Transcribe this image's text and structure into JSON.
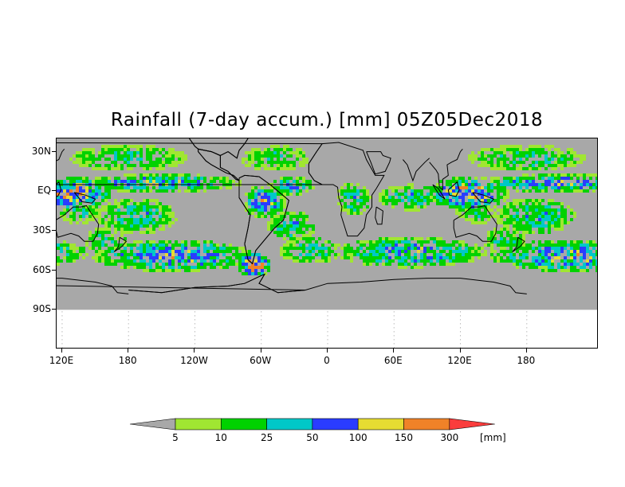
{
  "title": "Rainfall (7-day accum.) [mm] 05Z05Dec2018",
  "axes": {
    "lat_labels": [
      "30N",
      "EQ",
      "30S",
      "60S",
      "90S"
    ],
    "lat_values": [
      30,
      0,
      -30,
      -60,
      -90
    ],
    "lon_labels": [
      "120E",
      "180",
      "120W",
      "60W",
      "0",
      "60E",
      "120E",
      "180"
    ],
    "lon_values": [
      120,
      180,
      240,
      300,
      360,
      420,
      480,
      540
    ]
  },
  "map": {
    "lon_range": [
      115,
      605
    ],
    "lat_range": [
      -120,
      40
    ],
    "data_lat_bottom": -90,
    "no_data_color": "#a8a8a8"
  },
  "legend": {
    "thresholds": [
      "5",
      "10",
      "25",
      "50",
      "100",
      "150",
      "300"
    ],
    "unit": "[mm]",
    "colors": [
      "#a8a8a8",
      "#a0e632",
      "#00d200",
      "#00c8c8",
      "#2a3cff",
      "#e6dc32",
      "#f08228",
      "#fa3c3c"
    ]
  },
  "continents": [
    {
      "name": "south-america",
      "points": [
        [
          -80,
          10
        ],
        [
          -75,
          12
        ],
        [
          -62,
          11
        ],
        [
          -52,
          5
        ],
        [
          -35,
          -7
        ],
        [
          -40,
          -22
        ],
        [
          -48,
          -28
        ],
        [
          -58,
          -38
        ],
        [
          -65,
          -45
        ],
        [
          -68,
          -55
        ],
        [
          -72,
          -52
        ],
        [
          -75,
          -40
        ],
        [
          -72,
          -28
        ],
        [
          -70,
          -18
        ],
        [
          -80,
          -5
        ]
      ]
    },
    {
      "name": "central-america",
      "points": [
        [
          -117,
          32
        ],
        [
          -105,
          30
        ],
        [
          -97,
          27
        ],
        [
          -97,
          18
        ],
        [
          -90,
          15
        ],
        [
          -83,
          9
        ],
        [
          -80,
          8
        ],
        [
          -85,
          12
        ],
        [
          -92,
          14
        ],
        [
          -105,
          20
        ],
        [
          -110,
          23
        ],
        [
          -117,
          30
        ]
      ]
    },
    {
      "name": "north-america",
      "points": [
        [
          -125,
          40
        ],
        [
          -120,
          34
        ],
        [
          -117,
          32
        ],
        [
          -105,
          30
        ],
        [
          -97,
          27
        ],
        [
          -90,
          30
        ],
        [
          -82,
          25
        ],
        [
          -80,
          31
        ],
        [
          -75,
          36
        ],
        [
          -72,
          40
        ]
      ]
    },
    {
      "name": "africa",
      "points": [
        [
          -17,
          21
        ],
        [
          -17,
          14
        ],
        [
          -12,
          8
        ],
        [
          -5,
          5
        ],
        [
          5,
          5
        ],
        [
          9,
          3
        ],
        [
          10,
          -5
        ],
        [
          13,
          -12
        ],
        [
          12,
          -18
        ],
        [
          18,
          -34
        ],
        [
          27,
          -34
        ],
        [
          33,
          -28
        ],
        [
          35,
          -18
        ],
        [
          40,
          -12
        ],
        [
          40,
          -3
        ],
        [
          44,
          2
        ],
        [
          51,
          12
        ],
        [
          43,
          12
        ],
        [
          35,
          24
        ],
        [
          32,
          31
        ],
        [
          10,
          37
        ],
        [
          -5,
          36
        ],
        [
          -10,
          30
        ]
      ]
    },
    {
      "name": "madagascar",
      "points": [
        [
          44,
          -12
        ],
        [
          50,
          -15
        ],
        [
          49,
          -25
        ],
        [
          45,
          -25
        ],
        [
          43,
          -20
        ]
      ]
    },
    {
      "name": "arabia",
      "points": [
        [
          35,
          30
        ],
        [
          39,
          22
        ],
        [
          43,
          13
        ],
        [
          52,
          15
        ],
        [
          56,
          22
        ],
        [
          57,
          25
        ],
        [
          50,
          27
        ],
        [
          48,
          30
        ]
      ]
    },
    {
      "name": "india",
      "points": [
        [
          68,
          24
        ],
        [
          72,
          20
        ],
        [
          77,
          8
        ],
        [
          80,
          15
        ],
        [
          88,
          22
        ],
        [
          92,
          25
        ]
      ]
    },
    {
      "name": "southeast-asia",
      "points": [
        [
          92,
          22
        ],
        [
          98,
          16
        ],
        [
          100,
          13
        ],
        [
          101,
          3
        ],
        [
          104,
          1
        ],
        [
          104,
          9
        ],
        [
          109,
          12
        ],
        [
          108,
          20
        ],
        [
          112,
          22
        ],
        [
          117,
          24
        ],
        [
          120,
          30
        ],
        [
          122,
          32
        ]
      ]
    },
    {
      "name": "sumatra",
      "points": [
        [
          95,
          5
        ],
        [
          100,
          2
        ],
        [
          106,
          -6
        ],
        [
          101,
          -3
        ]
      ]
    },
    {
      "name": "borneo",
      "points": [
        [
          109,
          1
        ],
        [
          117,
          7
        ],
        [
          119,
          1
        ],
        [
          116,
          -4
        ],
        [
          110,
          -3
        ]
      ]
    },
    {
      "name": "new-guinea",
      "points": [
        [
          131,
          -1
        ],
        [
          141,
          -3
        ],
        [
          150,
          -6
        ],
        [
          147,
          -9
        ],
        [
          138,
          -8
        ]
      ]
    },
    {
      "name": "australia",
      "points": [
        [
          114,
          -22
        ],
        [
          122,
          -18
        ],
        [
          130,
          -12
        ],
        [
          137,
          -12
        ],
        [
          142,
          -11
        ],
        [
          145,
          -15
        ],
        [
          153,
          -25
        ],
        [
          152,
          -32
        ],
        [
          148,
          -38
        ],
        [
          140,
          -38
        ],
        [
          135,
          -34
        ],
        [
          128,
          -32
        ],
        [
          116,
          -35
        ],
        [
          114,
          -28
        ]
      ]
    },
    {
      "name": "new-zealand",
      "points": [
        [
          172,
          -35
        ],
        [
          178,
          -38
        ],
        [
          174,
          -42
        ],
        [
          167,
          -46
        ],
        [
          171,
          -42
        ]
      ]
    },
    {
      "name": "antarctica",
      "points": [
        [
          -180,
          -75
        ],
        [
          -150,
          -77
        ],
        [
          -120,
          -73
        ],
        [
          -90,
          -72
        ],
        [
          -75,
          -70
        ],
        [
          -60,
          -64
        ],
        [
          -57,
          -63
        ],
        [
          -62,
          -70
        ],
        [
          -45,
          -77
        ],
        [
          -20,
          -75
        ],
        [
          0,
          -70
        ],
        [
          30,
          -69
        ],
        [
          60,
          -67
        ],
        [
          90,
          -66
        ],
        [
          120,
          -66
        ],
        [
          150,
          -69
        ],
        [
          165,
          -72
        ],
        [
          170,
          -77
        ],
        [
          180,
          -78
        ]
      ]
    }
  ],
  "rain_bands": [
    {
      "name": "itcz-pacific",
      "lon": [
        140,
        280
      ],
      "lat": [
        2,
        10
      ],
      "intensity": 0.7
    },
    {
      "name": "itcz-atlantic",
      "lon": [
        -50,
        -15
      ],
      "lat": [
        0,
        8
      ],
      "intensity": 0.65
    },
    {
      "name": "indian-ocean",
      "lon": [
        50,
        100
      ],
      "lat": [
        -12,
        2
      ],
      "intensity": 0.6
    },
    {
      "name": "maritime-continent",
      "lon": [
        95,
        160
      ],
      "lat": [
        -12,
        8
      ],
      "intensity": 0.85
    },
    {
      "name": "amazon",
      "lon": [
        -72,
        -42
      ],
      "lat": [
        -18,
        2
      ],
      "intensity": 0.75
    },
    {
      "name": "central-africa",
      "lon": [
        12,
        35
      ],
      "lat": [
        -16,
        4
      ],
      "intensity": 0.6
    },
    {
      "name": "spcz",
      "lon": [
        155,
        220
      ],
      "lat": [
        -30,
        -8
      ],
      "intensity": 0.6
    },
    {
      "name": "sacz",
      "lon": [
        -50,
        -15
      ],
      "lat": [
        -35,
        -18
      ],
      "intensity": 0.6
    },
    {
      "name": "storm-track-pacific",
      "lon": [
        150,
        290
      ],
      "lat": [
        -58,
        -40
      ],
      "intensity": 0.75
    },
    {
      "name": "drake-passage",
      "lon": [
        -78,
        -55
      ],
      "lat": [
        -62,
        -50
      ],
      "intensity": 1.0
    },
    {
      "name": "storm-track-indian",
      "lon": [
        10,
        140
      ],
      "lat": [
        -55,
        -38
      ],
      "intensity": 0.7
    },
    {
      "name": "storm-track-atlantic",
      "lon": [
        -40,
        10
      ],
      "lat": [
        -52,
        -38
      ],
      "intensity": 0.6
    },
    {
      "name": "north-pacific",
      "lon": [
        130,
        230
      ],
      "lat": [
        18,
        32
      ],
      "intensity": 0.55
    },
    {
      "name": "north-atlantic",
      "lon": [
        -75,
        -20
      ],
      "lat": [
        18,
        32
      ],
      "intensity": 0.5
    },
    {
      "name": "tasman",
      "lon": [
        145,
        175
      ],
      "lat": [
        -45,
        -30
      ],
      "intensity": 0.55
    },
    {
      "name": "australia-north",
      "lon": [
        120,
        150
      ],
      "lat": [
        -22,
        -10
      ],
      "intensity": 0.5
    }
  ]
}
